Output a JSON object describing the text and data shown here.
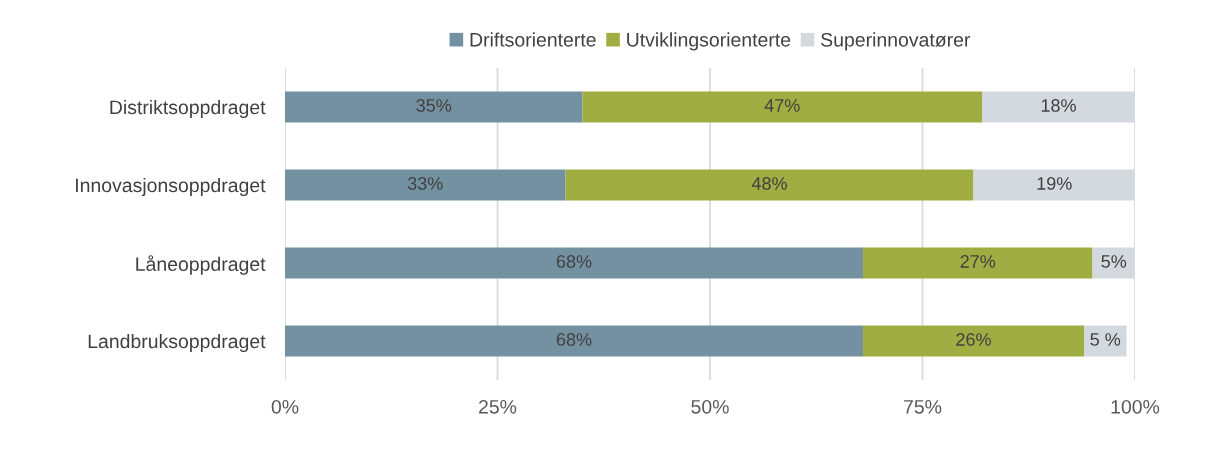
{
  "chart_data": {
    "type": "bar",
    "orientation": "horizontal",
    "stacked": true,
    "categories": [
      "Distriktsoppdraget",
      "Innovasjonsoppdraget",
      "Låneoppdraget",
      "Landbruksoppdraget"
    ],
    "series": [
      {
        "name": "Driftsorienterte",
        "color": "#7491a2",
        "values": [
          35,
          33,
          68,
          68
        ],
        "value_labels": [
          "35%",
          "33%",
          "68%",
          "68%"
        ]
      },
      {
        "name": "Utviklingsorienterte",
        "color": "#9fad42",
        "values": [
          47,
          48,
          27,
          26
        ],
        "value_labels": [
          "47%",
          "48%",
          "27%",
          "26%"
        ]
      },
      {
        "name": "Superinnovatører",
        "color": "#d3d9df",
        "values": [
          18,
          19,
          5,
          5
        ],
        "value_labels": [
          "18%",
          "19%",
          "5%",
          "5 %"
        ]
      }
    ],
    "xlim": [
      0,
      100
    ],
    "xticks": [
      {
        "value": 0,
        "label": "0%"
      },
      {
        "value": 25,
        "label": "25%"
      },
      {
        "value": 50,
        "label": "50%"
      },
      {
        "value": 75,
        "label": "75%"
      },
      {
        "value": 100,
        "label": "100%"
      }
    ],
    "grid": "x",
    "legend": "top"
  }
}
